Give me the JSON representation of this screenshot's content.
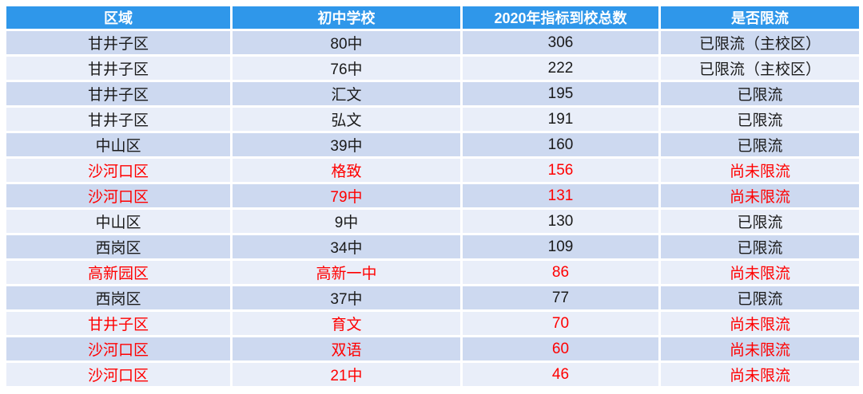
{
  "colors": {
    "header_bg": "#2F97EA",
    "header_text": "#FFFFFF",
    "row_odd_bg": "#CDD9F0",
    "row_even_bg": "#E9EEF9",
    "text_normal": "#1A1A1A",
    "text_highlight": "#FF0000",
    "grid_line": "#FFFFFF"
  },
  "chart_data": {
    "type": "table",
    "columns": [
      "区域",
      "初中学校",
      "2020年指标到校总数",
      "是否限流"
    ],
    "rows": [
      {
        "cells": [
          "甘井子区",
          "80中",
          306,
          "已限流（主校区）"
        ],
        "red": false
      },
      {
        "cells": [
          "甘井子区",
          "76中",
          222,
          "已限流（主校区）"
        ],
        "red": false
      },
      {
        "cells": [
          "甘井子区",
          "汇文",
          195,
          "已限流"
        ],
        "red": false
      },
      {
        "cells": [
          "甘井子区",
          "弘文",
          191,
          "已限流"
        ],
        "red": false
      },
      {
        "cells": [
          "中山区",
          "39中",
          160,
          "已限流"
        ],
        "red": false
      },
      {
        "cells": [
          "沙河口区",
          "格致",
          156,
          "尚未限流"
        ],
        "red": true
      },
      {
        "cells": [
          "沙河口区",
          "79中",
          131,
          "尚未限流"
        ],
        "red": true
      },
      {
        "cells": [
          "中山区",
          "9中",
          130,
          "已限流"
        ],
        "red": false
      },
      {
        "cells": [
          "西岗区",
          "34中",
          109,
          "已限流"
        ],
        "red": false
      },
      {
        "cells": [
          "高新园区",
          "高新一中",
          86,
          "尚未限流"
        ],
        "red": true
      },
      {
        "cells": [
          "西岗区",
          "37中",
          77,
          "已限流"
        ],
        "red": false
      },
      {
        "cells": [
          "甘井子区",
          "育文",
          70,
          "尚未限流"
        ],
        "red": true
      },
      {
        "cells": [
          "沙河口区",
          "双语",
          60,
          "尚未限流"
        ],
        "red": true
      },
      {
        "cells": [
          "沙河口区",
          "21中",
          46,
          "尚未限流"
        ],
        "red": true
      }
    ],
    "layout": {
      "banded_rows": true,
      "highlight_meaning": "red rows = 尚未限流 (not yet flow-limited)"
    }
  }
}
